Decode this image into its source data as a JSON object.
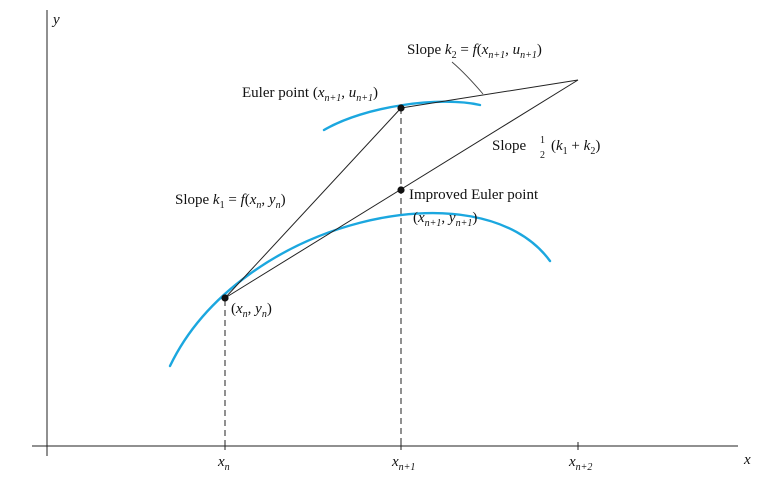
{
  "axes": {
    "y_label": "y",
    "x_label": "x"
  },
  "ticks": {
    "xn": {
      "base": "x",
      "sub": "n"
    },
    "xn1": {
      "base": "x",
      "sub": "n+1"
    },
    "xn2": {
      "base": "x",
      "sub": "n+2"
    }
  },
  "labels": {
    "slope_k2": {
      "word": "Slope ",
      "k": "k",
      "k_sub": "2",
      "eq": " = ",
      "f": "f",
      "open": "(",
      "x": "x",
      "x_sub": "n+1",
      "comma": ", ",
      "u": "u",
      "u_sub": "n+1",
      "close": ")"
    },
    "euler_point": {
      "word": "Euler point (",
      "x": "x",
      "x_sub": "n+1",
      "comma": ", ",
      "u": "u",
      "u_sub": "n+1",
      "close": ")"
    },
    "slope_avg": {
      "word": "Slope",
      "frac_num": "1",
      "frac_den": "2",
      "open": "(",
      "k1": "k",
      "k1_sub": "1",
      "plus": " + ",
      "k2": "k",
      "k2_sub": "2",
      "close": ")"
    },
    "slope_k1": {
      "word": "Slope ",
      "k": "k",
      "k_sub": "1",
      "eq": " = ",
      "f": "f",
      "open": "(",
      "x": "x",
      "x_sub": "n",
      "comma": ", ",
      "y": "y",
      "y_sub": "n",
      "close": ")"
    },
    "improved_euler": {
      "line1": "Improved Euler point",
      "open": "(",
      "x": "x",
      "x_sub": "n+1",
      "comma": ", ",
      "y": "y",
      "y_sub": "n+1",
      "close": ")"
    },
    "start_point": {
      "open": "(",
      "x": "x",
      "x_sub": "n",
      "comma": ", ",
      "y": "y",
      "y_sub": "n",
      "close": ")"
    }
  },
  "colors": {
    "curve": "#1ba7df",
    "ink": "#111111"
  }
}
